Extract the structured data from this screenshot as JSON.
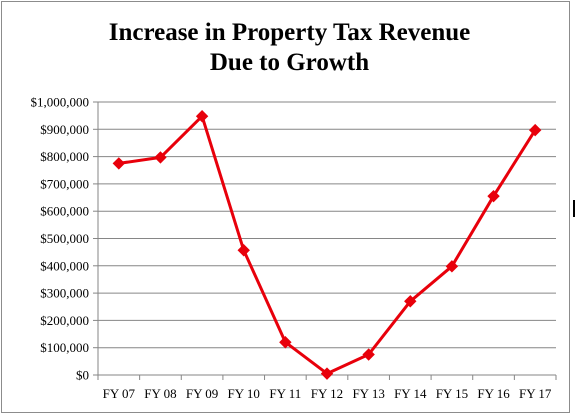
{
  "chart_data": {
    "type": "line",
    "title_lines": [
      "Increase in Property Tax Revenue",
      "Due to Growth"
    ],
    "categories": [
      "FY 07",
      "FY 08",
      "FY 09",
      "FY 10",
      "FY 11",
      "FY 12",
      "FY 13",
      "FY 14",
      "FY 15",
      "FY 16",
      "FY 17"
    ],
    "series": [
      {
        "values": [
          775000,
          797000,
          948000,
          457000,
          120000,
          5000,
          75000,
          270000,
          398000,
          655000,
          897000
        ],
        "color": "#e8000b",
        "marker": "diamond"
      }
    ],
    "ylim": [
      0,
      1000000
    ],
    "y_ticks": [
      0,
      100000,
      200000,
      300000,
      400000,
      500000,
      600000,
      700000,
      800000,
      900000,
      1000000
    ],
    "y_tick_labels": [
      "$0",
      "$100,000",
      "$200,000",
      "$300,000",
      "$400,000",
      "$500,000",
      "$600,000",
      "$700,000",
      "$800,000",
      "$900,000",
      "$1,000,000"
    ],
    "grid": true,
    "gridline_color": "#868686",
    "legend": "none"
  }
}
